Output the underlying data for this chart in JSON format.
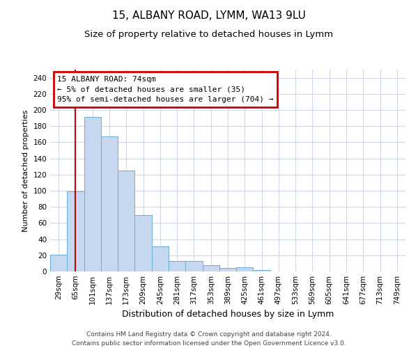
{
  "title1": "15, ALBANY ROAD, LYMM, WA13 9LU",
  "title2": "Size of property relative to detached houses in Lymm",
  "xlabel": "Distribution of detached houses by size in Lymm",
  "ylabel": "Number of detached properties",
  "categories": [
    "29sqm",
    "65sqm",
    "101sqm",
    "137sqm",
    "173sqm",
    "209sqm",
    "245sqm",
    "281sqm",
    "317sqm",
    "353sqm",
    "389sqm",
    "425sqm",
    "461sqm",
    "497sqm",
    "533sqm",
    "569sqm",
    "605sqm",
    "641sqm",
    "677sqm",
    "713sqm",
    "749sqm"
  ],
  "values": [
    21,
    99,
    191,
    167,
    125,
    70,
    31,
    13,
    13,
    8,
    4,
    5,
    2,
    0,
    0,
    0,
    0,
    0,
    0,
    0,
    0
  ],
  "bar_color": "#c5d8f0",
  "bar_edge_color": "#6baed6",
  "vline_x": 1.0,
  "vline_color": "#cc0000",
  "annotation_line1": "15 ALBANY ROAD: 74sqm",
  "annotation_line2": "← 5% of detached houses are smaller (35)",
  "annotation_line3": "95% of semi-detached houses are larger (704) →",
  "annotation_box_color": "#cc0000",
  "ylim": [
    0,
    250
  ],
  "yticks": [
    0,
    20,
    40,
    60,
    80,
    100,
    120,
    140,
    160,
    180,
    200,
    220,
    240
  ],
  "bg_color": "#ffffff",
  "plot_bg_color": "#ffffff",
  "grid_color": "#d0d8e8",
  "footer1": "Contains HM Land Registry data © Crown copyright and database right 2024.",
  "footer2": "Contains public sector information licensed under the Open Government Licence v3.0.",
  "title1_fontsize": 11,
  "title2_fontsize": 9.5,
  "xlabel_fontsize": 9,
  "ylabel_fontsize": 8,
  "tick_fontsize": 7.5,
  "annot_fontsize": 8,
  "footer_fontsize": 6.5
}
